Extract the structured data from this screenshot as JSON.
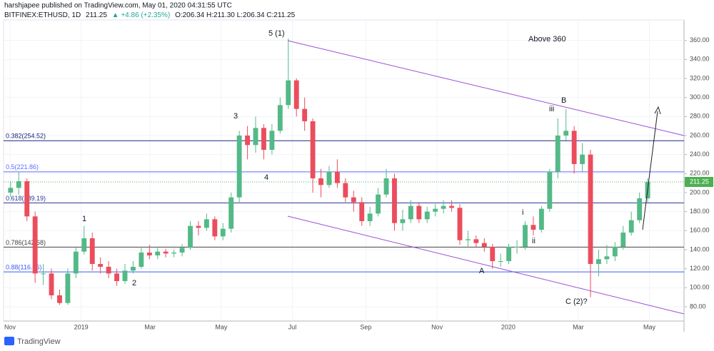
{
  "header": {
    "author_line": "harshjapee published on TradingView.com, May 01, 2020 04:31:55 UTC",
    "symbol": "BITFINEX:ETHUSD, 1D",
    "change": "▲ +4.86 (+2.35%)",
    "ohlc": "O:206.34 H:211.30 L:206.34 C:211.25"
  },
  "footer": {
    "brand": "TradingView"
  },
  "chart_data": {
    "type": "candlestick",
    "last_price": 211.25,
    "up_color": "#53b987",
    "down_color": "#eb4d5c",
    "last_price_color": "#4caf50",
    "open": [
      200,
      205,
      212,
      175,
      115,
      115,
      92,
      84,
      115,
      138,
      152,
      125,
      122,
      115,
      107,
      118,
      122,
      137,
      134,
      138,
      136,
      137,
      142,
      165,
      163,
      172,
      154,
      162,
      195,
      260,
      250,
      268,
      245,
      265,
      292,
      318,
      288,
      275,
      215,
      208,
      222,
      210,
      195,
      190,
      170,
      178,
      198,
      215,
      168,
      172,
      186,
      172,
      180,
      183,
      186,
      184,
      150,
      151,
      147,
      143,
      128,
      128,
      143,
      143,
      166,
      161,
      183,
      222,
      260,
      265,
      230,
      240,
      125,
      130,
      133,
      143,
      158,
      171,
      194
    ],
    "high": [
      212,
      222,
      215,
      180,
      125,
      120,
      98,
      120,
      142,
      165,
      158,
      132,
      128,
      120,
      125,
      128,
      142,
      145,
      142,
      141,
      140,
      146,
      170,
      170,
      178,
      175,
      168,
      200,
      265,
      270,
      280,
      272,
      272,
      300,
      362,
      320,
      300,
      278,
      225,
      228,
      235,
      215,
      202,
      195,
      185,
      205,
      225,
      220,
      182,
      192,
      190,
      185,
      188,
      192,
      192,
      188,
      160,
      155,
      152,
      146,
      136,
      146,
      150,
      170,
      175,
      186,
      225,
      278,
      288,
      270,
      252,
      245,
      140,
      145,
      148,
      165,
      180,
      200,
      215
    ],
    "low": [
      195,
      198,
      170,
      105,
      103,
      88,
      82,
      82,
      110,
      135,
      118,
      115,
      110,
      102,
      104,
      115,
      120,
      130,
      130,
      132,
      132,
      133,
      140,
      155,
      160,
      150,
      150,
      158,
      190,
      235,
      242,
      235,
      240,
      262,
      288,
      280,
      265,
      200,
      195,
      205,
      205,
      190,
      180,
      165,
      165,
      175,
      195,
      160,
      160,
      168,
      168,
      168,
      175,
      178,
      180,
      145,
      142,
      143,
      138,
      120,
      122,
      125,
      136,
      140,
      155,
      158,
      180,
      215,
      255,
      220,
      222,
      90,
      112,
      125,
      128,
      140,
      155,
      168,
      190
    ],
    "close": [
      205,
      212,
      175,
      115,
      115,
      92,
      84,
      115,
      138,
      152,
      125,
      122,
      115,
      107,
      118,
      122,
      137,
      134,
      138,
      136,
      137,
      142,
      165,
      163,
      172,
      154,
      162,
      195,
      260,
      250,
      268,
      245,
      265,
      292,
      318,
      288,
      275,
      215,
      208,
      222,
      210,
      195,
      190,
      170,
      178,
      198,
      215,
      168,
      172,
      186,
      172,
      180,
      183,
      186,
      184,
      150,
      151,
      147,
      143,
      128,
      128,
      143,
      143,
      166,
      161,
      183,
      222,
      260,
      265,
      230,
      240,
      125,
      130,
      133,
      143,
      158,
      171,
      194,
      211.25
    ],
    "xlim": [
      -0.86,
      82.45
    ],
    "xticks": [
      {
        "value": -0.07,
        "label": "Nov"
      },
      {
        "value": 8.64,
        "label": "2019"
      },
      {
        "value": 17.07,
        "label": "Mar"
      },
      {
        "value": 25.79,
        "label": "May"
      },
      {
        "value": 34.5,
        "label": "Jul"
      },
      {
        "value": 43.5,
        "label": "Sep"
      },
      {
        "value": 52.21,
        "label": "Nov"
      },
      {
        "value": 60.93,
        "label": "2020"
      },
      {
        "value": 69.5,
        "label": "Mar"
      },
      {
        "value": 78.21,
        "label": "May"
      }
    ],
    "ylim": [
      65,
      386
    ],
    "yticks": [
      {
        "value": 80,
        "label": "80.00"
      },
      {
        "value": 100,
        "label": "100.00"
      },
      {
        "value": 120,
        "label": "120.00"
      },
      {
        "value": 140,
        "label": "140.00"
      },
      {
        "value": 160,
        "label": "160.00"
      },
      {
        "value": 180,
        "label": "180.00"
      },
      {
        "value": 200,
        "label": "200.00"
      },
      {
        "value": 220,
        "label": "220.00"
      },
      {
        "value": 240,
        "label": "240.00"
      },
      {
        "value": 260,
        "label": "260.00"
      },
      {
        "value": 280,
        "label": "280.00"
      },
      {
        "value": 300,
        "label": "300.00"
      },
      {
        "value": 320,
        "label": "320.00"
      },
      {
        "value": 340,
        "label": "340.00"
      },
      {
        "value": 360,
        "label": "360.00"
      }
    ],
    "grid": true,
    "fib_levels": [
      {
        "value": 254.52,
        "label": "0.382(254.52)",
        "color": "#1a237e"
      },
      {
        "value": 221.86,
        "label": "0.5(221.86)",
        "color": "#5c6bff"
      },
      {
        "value": 189.19,
        "label": "0.618(189.19)",
        "color": "#283593"
      },
      {
        "value": 142.68,
        "label": "0.786(142.68)",
        "color": "#424242"
      },
      {
        "value": 116.66,
        "label": "0.88(116.66)",
        "color": "#3d5afe"
      }
    ],
    "annotations": [
      "5 (1)",
      "Above 360",
      "3",
      "4",
      "B",
      "iii",
      "1",
      "2",
      "i",
      "ii",
      "A",
      "C (2)?"
    ]
  }
}
